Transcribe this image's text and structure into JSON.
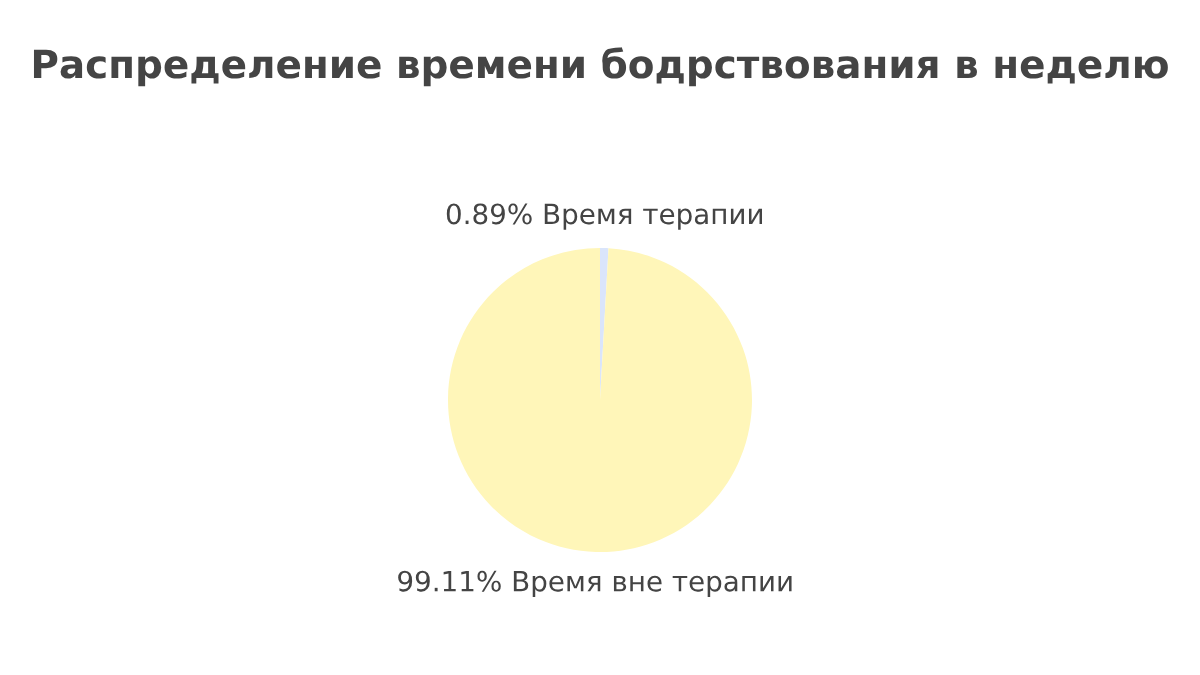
{
  "chart_data": {
    "type": "pie",
    "title": "Распределение времени бодрствования в неделю",
    "categories": [
      "Время терапии",
      "Время вне терапии"
    ],
    "values": [
      0.89,
      99.11
    ],
    "value_labels": [
      "0.89%",
      "99.11%"
    ],
    "colors": [
      "#dae5fb",
      "#fff6b9"
    ],
    "legend": false
  }
}
